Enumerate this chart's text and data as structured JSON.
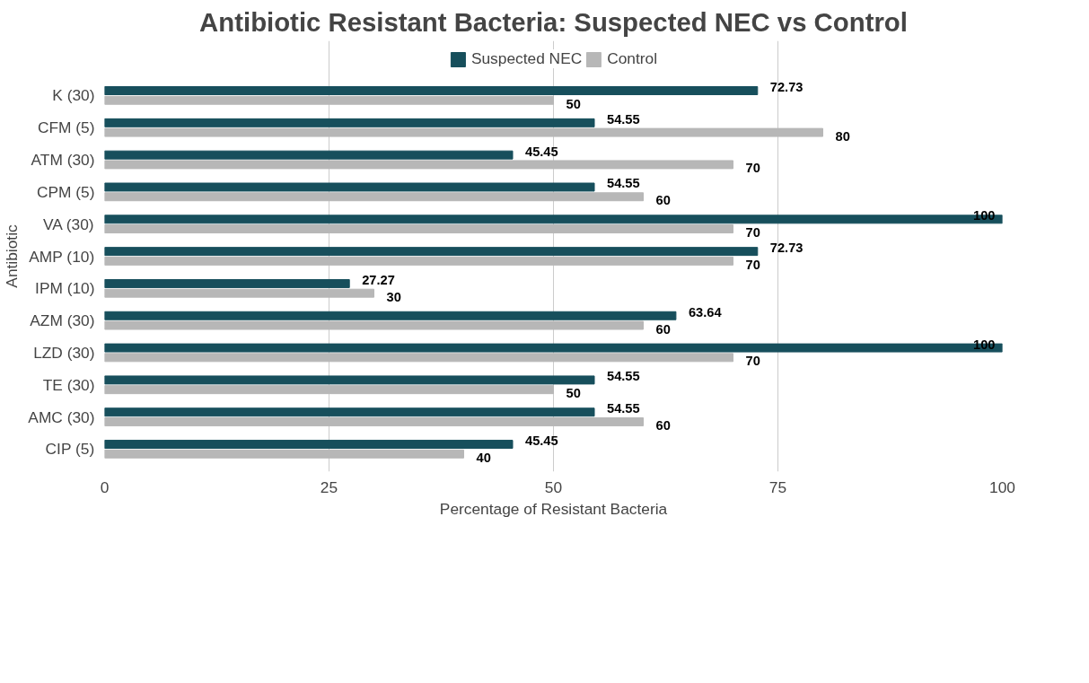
{
  "chart_data": {
    "type": "bar",
    "orientation": "horizontal",
    "title": "Antibiotic Resistant Bacteria: Suspected NEC vs Control",
    "xlabel": "Percentage of Resistant Bacteria",
    "ylabel": "Antibiotic",
    "categories": [
      "K (30)",
      "CFM (5)",
      "ATM (30)",
      "CPM (5)",
      "VA (30)",
      "AMP (10)",
      "IPM (10)",
      "AZM (30)",
      "LZD (30)",
      "TE (30)",
      "AMC (30)",
      "CIP (5)"
    ],
    "series": [
      {
        "name": "Suspected NEC",
        "color": "#174f5c",
        "values": [
          72.73,
          54.55,
          45.45,
          54.55,
          100,
          72.73,
          27.27,
          63.64,
          100,
          54.55,
          54.55,
          45.45
        ]
      },
      {
        "name": "Control",
        "color": "#b7b7b7",
        "values": [
          50,
          80,
          70,
          60,
          70,
          70,
          30,
          60,
          70,
          50,
          60,
          40
        ]
      }
    ],
    "xlim": [
      0,
      100
    ],
    "xticks": [
      0,
      25,
      50,
      75,
      100
    ],
    "grid": "x",
    "legend": "top",
    "data_labels": true
  }
}
